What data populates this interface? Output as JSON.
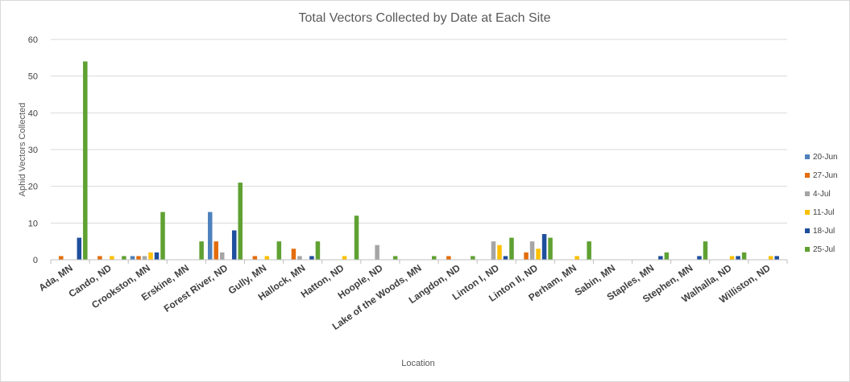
{
  "chart_data": {
    "type": "bar",
    "title": "Total Vectors Collected by Date at Each Site",
    "xlabel": "Location",
    "ylabel": "Aphid Vectors Collected",
    "ylim": [
      0,
      60
    ],
    "yticks": [
      0,
      10,
      20,
      30,
      40,
      50,
      60
    ],
    "grid": true,
    "legend_position": "right",
    "categories": [
      "Ada, MN",
      "Cando, ND",
      "Crookston, MN",
      "Erskine, MN",
      "Forest River, ND",
      "Gully, MN",
      "Hallock, MN",
      "Hatton, ND",
      "Hoople, ND",
      "Lake of the Woods, MN",
      "Langdon, ND",
      "Linton I, ND",
      "Linton II, ND",
      "Perham, MN",
      "Sabin, MN",
      "Staples, MN",
      "Stephen, MN",
      "Walhalla, ND",
      "Williston, ND"
    ],
    "series": [
      {
        "name": "20-Jun",
        "color": "#4f81bd",
        "values": [
          0,
          0,
          1,
          0,
          13,
          0,
          0,
          0,
          0,
          0,
          0,
          0,
          0,
          0,
          0,
          0,
          0,
          0,
          0
        ]
      },
      {
        "name": "27-Jun",
        "color": "#e46c0a",
        "values": [
          1,
          1,
          1,
          0,
          5,
          1,
          3,
          0,
          0,
          0,
          1,
          0,
          2,
          0,
          0,
          0,
          0,
          0,
          0
        ]
      },
      {
        "name": "4-Jul",
        "color": "#a5a5a5",
        "values": [
          0,
          0,
          1,
          0,
          2,
          0,
          1,
          0,
          4,
          0,
          0,
          5,
          5,
          0,
          0,
          0,
          0,
          0,
          0
        ]
      },
      {
        "name": "11-Jul",
        "color": "#ffc000",
        "values": [
          0,
          1,
          2,
          0,
          0,
          1,
          0,
          1,
          0,
          0,
          0,
          4,
          3,
          1,
          0,
          0,
          0,
          1,
          1
        ]
      },
      {
        "name": "18-Jul",
        "color": "#1f4e9c",
        "values": [
          6,
          0,
          2,
          0,
          8,
          0,
          1,
          0,
          0,
          0,
          0,
          1,
          7,
          0,
          0,
          1,
          1,
          1,
          1
        ]
      },
      {
        "name": "25-Jul",
        "color": "#5fa132",
        "values": [
          54,
          1,
          13,
          5,
          21,
          5,
          5,
          12,
          1,
          1,
          1,
          6,
          6,
          5,
          0,
          2,
          5,
          2,
          0
        ]
      }
    ]
  }
}
